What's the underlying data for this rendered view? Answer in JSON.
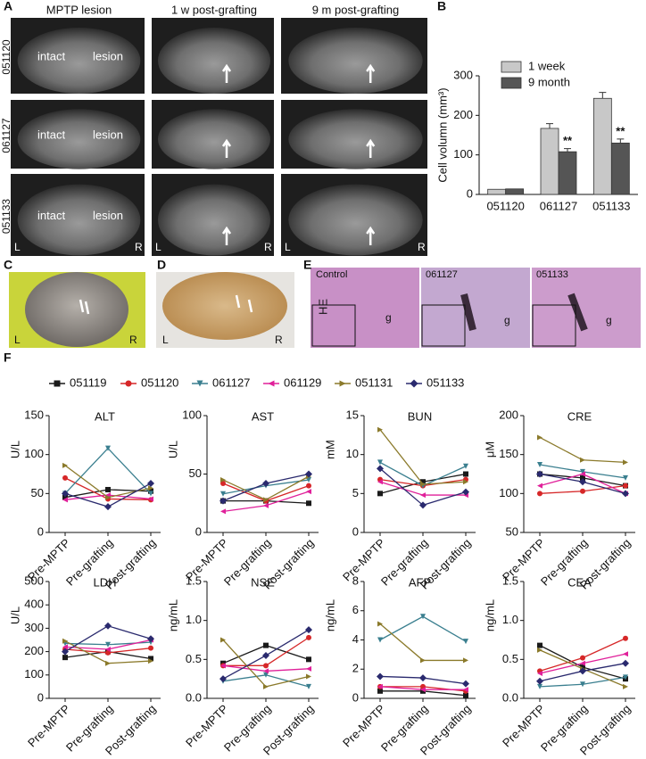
{
  "panel_labels": [
    "A",
    "B",
    "C",
    "D",
    "E",
    "F"
  ],
  "panel_a": {
    "columns": [
      "MPTP lesion",
      "1 w post-grafting",
      "9 m post-grafting"
    ],
    "rows": [
      "051120",
      "061127",
      "051133"
    ],
    "intact": "intact",
    "lesion": "lesion",
    "left": "L",
    "right": "R"
  },
  "panel_e": {
    "stain": "HE",
    "columns": [
      "Control",
      "061127",
      "051133"
    ],
    "graft": "g"
  },
  "chart_data": [
    {
      "type": "bar",
      "ylabel": "Cell volumn (mm³)",
      "categories": [
        "051120",
        "061127",
        "051133"
      ],
      "series": [
        {
          "name": "1 week",
          "color": "#c8c8c8",
          "values": [
            13,
            167,
            243
          ],
          "errors": [
            0,
            12,
            15
          ]
        },
        {
          "name": "9 month",
          "color": "#555555",
          "values": [
            14,
            108,
            130
          ],
          "errors": [
            0,
            8,
            10
          ]
        }
      ],
      "annotations": [
        {
          "text": "**",
          "x": "061127",
          "series": "9 month"
        },
        {
          "text": "**",
          "x": "051133",
          "series": "9 month"
        }
      ],
      "ylim": [
        0,
        300
      ],
      "yticks": [
        0,
        100,
        200,
        300
      ],
      "legend": "top-left"
    },
    {
      "type": "line",
      "categories": [
        "Pre-MPTP",
        "Pre-grafting",
        "Post-grafting"
      ],
      "series": [
        {
          "name": "051119",
          "color": "#1a1a1a",
          "marker": "square"
        },
        {
          "name": "051120",
          "color": "#d62728",
          "marker": "circle"
        },
        {
          "name": "061127",
          "color": "#3a7f8f",
          "marker": "triangle-down"
        },
        {
          "name": "061129",
          "color": "#e0209a",
          "marker": "triangle-left"
        },
        {
          "name": "051131",
          "color": "#8b7a2b",
          "marker": "triangle-right"
        },
        {
          "name": "051133",
          "color": "#2a2a6e",
          "marker": "diamond"
        }
      ],
      "panels": [
        {
          "title": "ALT",
          "ylabel": "U/L",
          "ylim": [
            0,
            150
          ],
          "yticks": [
            0,
            50,
            100,
            150
          ],
          "values": [
            [
              45,
              55,
              53
            ],
            [
              70,
              43,
              42
            ],
            [
              50,
              108,
              50
            ],
            [
              42,
              48,
              43
            ],
            [
              86,
              45,
              57
            ],
            [
              50,
              33,
              63
            ]
          ]
        },
        {
          "title": "AST",
          "ylabel": "U/L",
          "ylim": [
            0,
            100
          ],
          "yticks": [
            0,
            50,
            100
          ],
          "values": [
            [
              27,
              27,
              25
            ],
            [
              42,
              27,
              40
            ],
            [
              33,
              40,
              45
            ],
            [
              18,
              23,
              35
            ],
            [
              45,
              28,
              48
            ],
            [
              27,
              42,
              50
            ]
          ]
        },
        {
          "title": "BUN",
          "ylabel": "mM",
          "ylim": [
            0,
            15
          ],
          "yticks": [
            0,
            5,
            10,
            15
          ],
          "values": [
            [
              5,
              6.5,
              7.5
            ],
            [
              6.8,
              6,
              6.8
            ],
            [
              9,
              6,
              8.5
            ],
            [
              6.5,
              4.8,
              4.8
            ],
            [
              13.2,
              6.2,
              6.5
            ],
            [
              8.2,
              3.5,
              5.2
            ]
          ]
        },
        {
          "title": "CRE",
          "ylabel": "μM",
          "ylim": [
            50,
            200
          ],
          "yticks": [
            50,
            100,
            150,
            200
          ],
          "values": [
            [
              125,
              120,
              110
            ],
            [
              100,
              103,
              110
            ],
            [
              137,
              128,
              120
            ],
            [
              110,
              125,
              100
            ],
            [
              172,
              143,
              140
            ],
            [
              125,
              115,
              100
            ]
          ]
        },
        {
          "title": "LDH",
          "ylabel": "U/L",
          "ylim": [
            0,
            500
          ],
          "yticks": [
            0,
            100,
            200,
            300,
            400,
            500
          ],
          "values": [
            [
              175,
              200,
              170
            ],
            [
              210,
              195,
              215
            ],
            [
              235,
              230,
              240
            ],
            [
              220,
              210,
              250
            ],
            [
              245,
              150,
              160
            ],
            [
              200,
              310,
              255
            ]
          ]
        },
        {
          "title": "NSE",
          "ylabel": "ng/mL",
          "ylim": [
            0,
            1.5
          ],
          "yticks": [
            {
              "value": 0,
              "label": "0.0"
            },
            0.5,
            {
              "value": 1,
              "label": "1.0"
            },
            1.5
          ],
          "values": [
            [
              0.45,
              0.68,
              0.5
            ],
            [
              0.42,
              0.42,
              0.78
            ],
            [
              0.22,
              0.3,
              0.15
            ],
            [
              0.42,
              0.35,
              0.38
            ],
            [
              0.75,
              0.15,
              0.28
            ],
            [
              0.25,
              0.55,
              0.88
            ]
          ]
        },
        {
          "title": "AFP",
          "ylabel": "ng/mL",
          "ylim": [
            0,
            8
          ],
          "yticks": [
            0,
            2,
            4,
            6,
            8
          ],
          "values": [
            [
              0.5,
              0.5,
              0.2
            ],
            [
              0.8,
              0.8,
              0.5
            ],
            [
              4,
              5.6,
              3.9
            ],
            [
              0.8,
              0.6,
              0.6
            ],
            [
              5.1,
              2.6,
              2.6
            ],
            [
              1.5,
              1.4,
              1
            ]
          ]
        },
        {
          "title": "CEA",
          "ylabel": "ng/mL",
          "ylim": [
            0,
            1.5
          ],
          "yticks": [
            {
              "value": 0,
              "label": "0.0"
            },
            0.5,
            {
              "value": 1,
              "label": "1.0"
            },
            1.5
          ],
          "values": [
            [
              0.68,
              0.4,
              0.25
            ],
            [
              0.35,
              0.52,
              0.77
            ],
            [
              0.15,
              0.18,
              0.27
            ],
            [
              0.32,
              0.45,
              0.57
            ],
            [
              0.62,
              0.38,
              0.15
            ],
            [
              0.22,
              0.35,
              0.45
            ]
          ]
        }
      ]
    }
  ]
}
